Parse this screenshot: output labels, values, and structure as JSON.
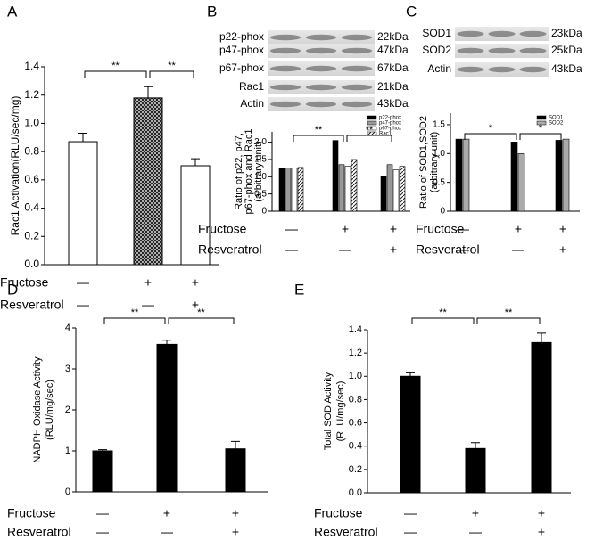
{
  "chart_data": [
    {
      "type": "bar",
      "panel_label": "A",
      "ylabel": [
        "Rac1 Activation(RLU/sec/mg)"
      ],
      "values": [
        0.87,
        1.18,
        0.7
      ],
      "errors": [
        0.06,
        0.08,
        0.05
      ],
      "colors": [
        "#ffffff",
        "#333333",
        "#ffffff"
      ],
      "hatch": [
        false,
        true,
        false
      ],
      "ylim": [
        0,
        1.4
      ],
      "yticks": [
        {
          "value": 0,
          "label": "0.0"
        },
        0.2,
        0.4,
        0.6,
        0.8,
        {
          "value": 1,
          "label": "1.0"
        },
        1.2,
        1.4
      ],
      "significance": [
        "**",
        "**"
      ],
      "treatments": [
        {
          "name": "Fructose",
          "signs": [
            "—",
            "+",
            "+"
          ]
        },
        {
          "name": "Resveratrol",
          "signs": [
            "—",
            "—",
            "+"
          ]
        }
      ]
    },
    {
      "type": "grouped-bar",
      "panel_label": "B",
      "ylabel": [
        "Ratio of p22, p47,",
        "p67-phox and Rac1",
        "(arbitrary unit)"
      ],
      "blot": [
        {
          "protein": "p22-phox",
          "size": "22kDa"
        },
        {
          "protein": "p47-phox",
          "size": "47kDa"
        },
        {
          "protein": "p67-phox",
          "size": "67kDa"
        },
        {
          "protein": "Rac1",
          "size": "21kDa"
        },
        {
          "protein": "Actin",
          "size": "43kDa"
        }
      ],
      "series": [
        {
          "name": "p22-phox",
          "color": "#000000",
          "values": [
            1.25,
            2.05,
            1.0
          ]
        },
        {
          "name": "p47-phox",
          "color": "#999999",
          "values": [
            1.25,
            1.35,
            1.35
          ]
        },
        {
          "name": "p67-phox",
          "color": "#ffffff",
          "values": [
            1.25,
            1.3,
            1.2
          ]
        },
        {
          "name": "Rac1",
          "color": "#ffffff",
          "hatch": true,
          "values": [
            1.27,
            1.5,
            1.3
          ]
        }
      ],
      "ylim": [
        0,
        2.3
      ],
      "yticks": [
        0,
        0.5,
        {
          "value": 1,
          "label": "1.0"
        },
        1.5,
        {
          "value": 2,
          "label": "2.0"
        }
      ],
      "significance": [
        "**",
        "**"
      ],
      "treatments": [
        {
          "name": "Fructose",
          "signs": [
            "—",
            "+",
            "+"
          ]
        },
        {
          "name": "Resveratrol",
          "signs": [
            "—",
            "—",
            "+"
          ]
        }
      ]
    },
    {
      "type": "grouped-bar",
      "panel_label": "C",
      "ylabel": [
        "Ratio of SOD1,SOD2",
        "(arbitrary unit)"
      ],
      "blot": [
        {
          "protein": "SOD1",
          "size": "23kDa"
        },
        {
          "protein": "SOD2",
          "size": "25kDa"
        },
        {
          "protein": "Actin",
          "size": "43kDa"
        }
      ],
      "series": [
        {
          "name": "SOD1",
          "color": "#000000",
          "values": [
            1.25,
            1.2,
            1.23
          ]
        },
        {
          "name": "SOD2",
          "color": "#aaaaaa",
          "values": [
            1.25,
            1.0,
            1.25
          ]
        }
      ],
      "ylim": [
        0,
        1.7
      ],
      "yticks": [
        0,
        0.5,
        {
          "value": 1,
          "label": "1.0"
        },
        1.5
      ],
      "significance": [
        "*",
        "*"
      ],
      "treatments": [
        {
          "name": "Fructose",
          "signs": [
            "—",
            "+",
            "+"
          ]
        },
        {
          "name": "Resveratrol",
          "signs": [
            "—",
            "—",
            "+"
          ]
        }
      ]
    },
    {
      "type": "bar",
      "panel_label": "D",
      "ylabel": [
        "NADPH Oxidase Activity",
        "(RLU/mg/sec)"
      ],
      "values": [
        1.0,
        3.6,
        1.05
      ],
      "errors": [
        0.03,
        0.1,
        0.18
      ],
      "colors": [
        "#000000",
        "#000000",
        "#000000"
      ],
      "hatch": [
        false,
        false,
        false
      ],
      "ylim": [
        0,
        4
      ],
      "yticks": [
        0,
        1,
        2,
        3,
        4
      ],
      "significance": [
        "**",
        "**"
      ],
      "treatments": [
        {
          "name": "Fructose",
          "signs": [
            "—",
            "+",
            "+"
          ]
        },
        {
          "name": "Resveratrol",
          "signs": [
            "—",
            "—",
            "+"
          ]
        }
      ]
    },
    {
      "type": "bar",
      "panel_label": "E",
      "ylabel": [
        "Total SOD Activity",
        "(RLU/mg/sec)"
      ],
      "values": [
        1.0,
        0.38,
        1.29
      ],
      "errors": [
        0.03,
        0.05,
        0.08
      ],
      "colors": [
        "#000000",
        "#000000",
        "#000000"
      ],
      "hatch": [
        false,
        false,
        false
      ],
      "ylim": [
        0,
        1.4
      ],
      "yticks": [
        {
          "value": 0,
          "label": "0.0"
        },
        0.2,
        0.4,
        0.6,
        0.8,
        {
          "value": 1,
          "label": "1.0"
        },
        1.2,
        1.4
      ],
      "significance": [
        "**",
        "**"
      ],
      "treatments": [
        {
          "name": "Fructose",
          "signs": [
            "—",
            "+",
            "+"
          ]
        },
        {
          "name": "Resveratrol",
          "signs": [
            "—",
            "—",
            "+"
          ]
        }
      ]
    }
  ]
}
